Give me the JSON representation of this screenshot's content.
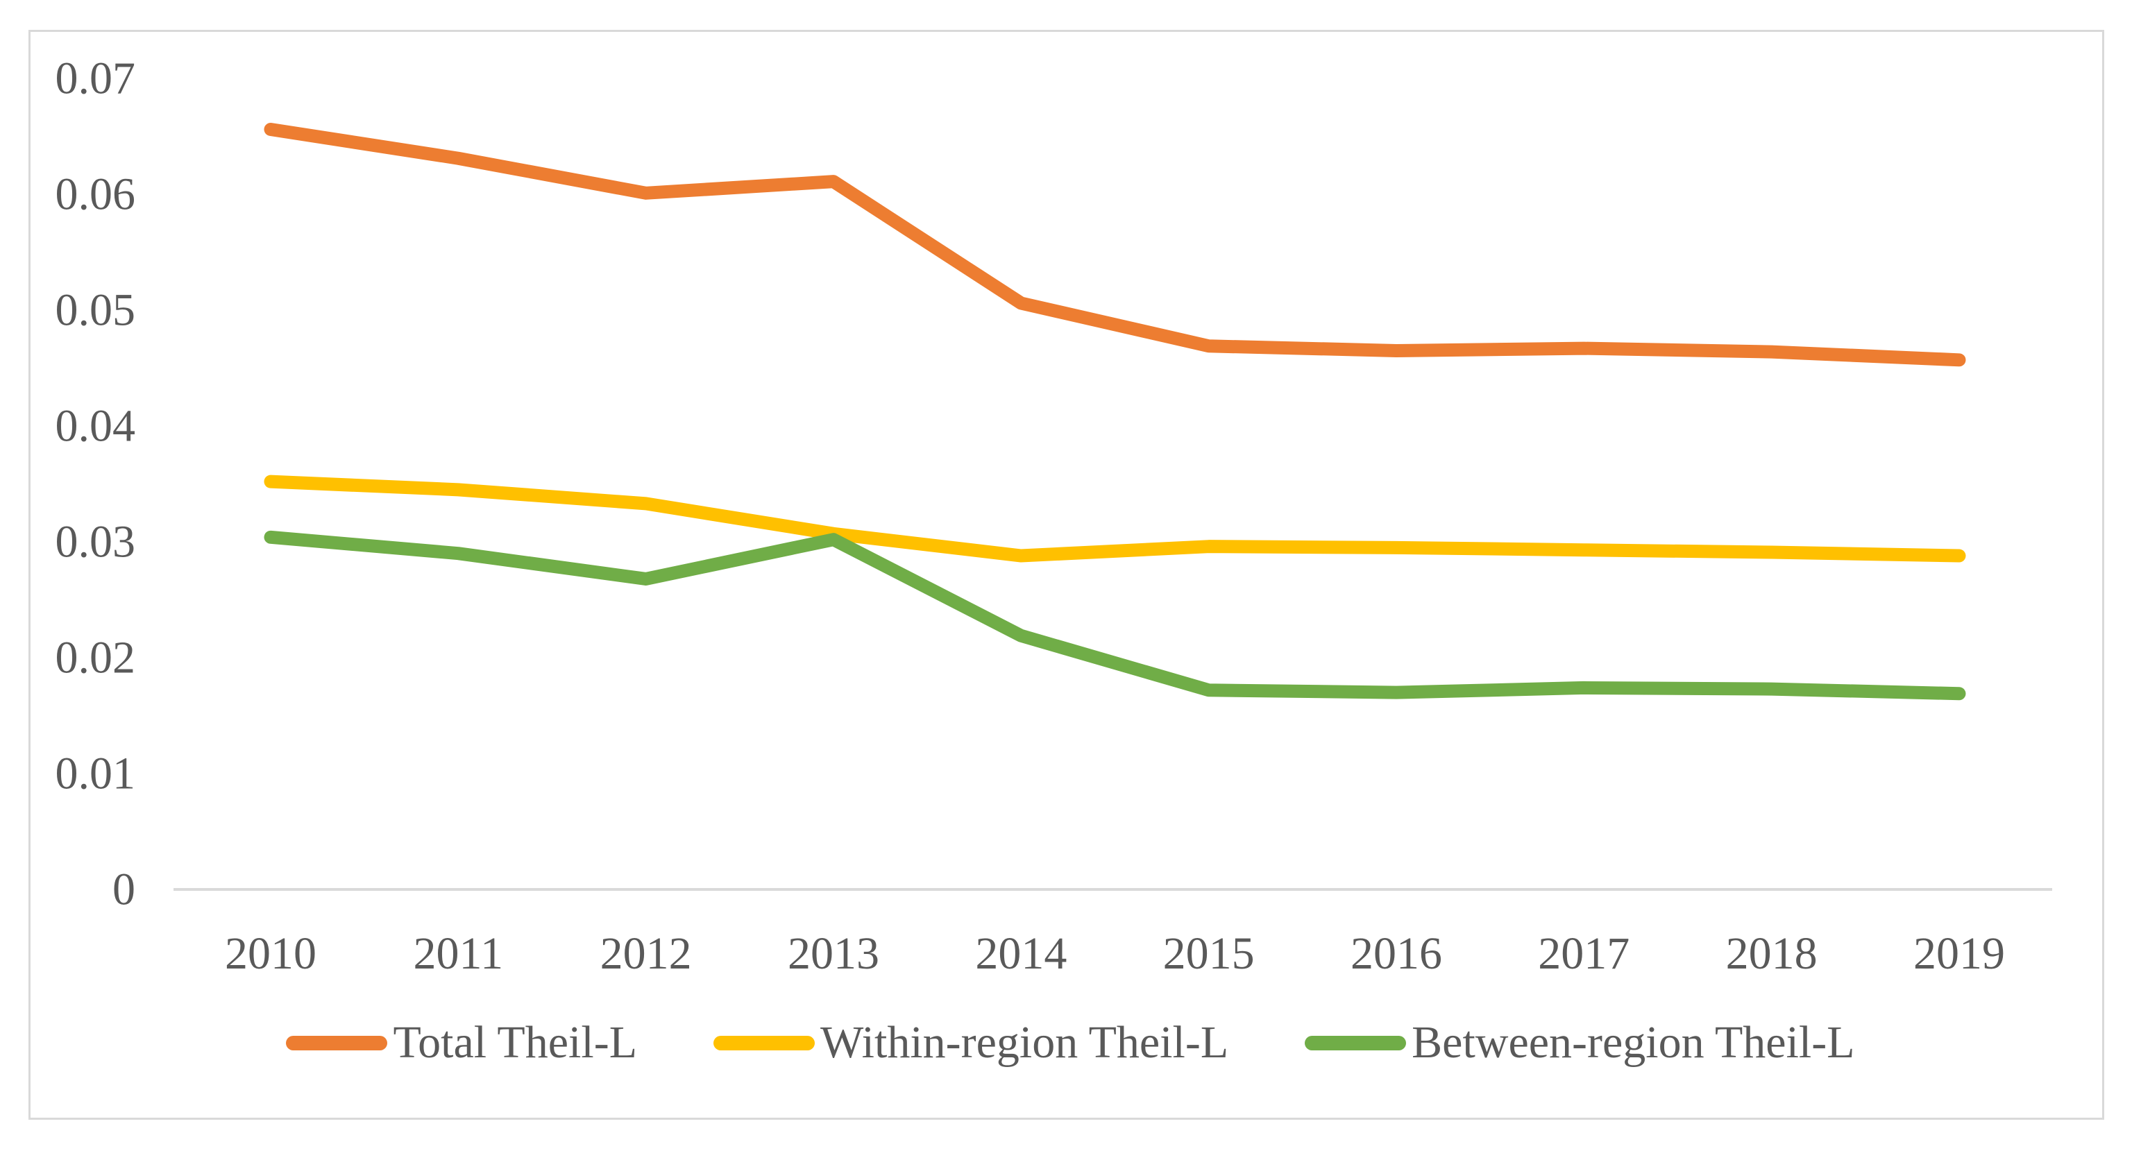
{
  "figure": {
    "description": "Line chart of Theil-L index decomposition, 2010-2019"
  },
  "chart_data": {
    "type": "line",
    "x": [
      "2010",
      "2011",
      "2012",
      "2013",
      "2014",
      "2015",
      "2016",
      "2017",
      "2018",
      "2019"
    ],
    "series": [
      {
        "name": "Total Theil-L",
        "color": "#ED7D31",
        "values": [
          0.0656,
          0.0631,
          0.0601,
          0.0611,
          0.0506,
          0.0469,
          0.0465,
          0.0467,
          0.0464,
          0.0457
        ]
      },
      {
        "name": "Within-region Theil-L",
        "color": "#FFC000",
        "values": [
          0.0352,
          0.0345,
          0.0333,
          0.0307,
          0.0288,
          0.0296,
          0.0295,
          0.0293,
          0.0291,
          0.0288
        ]
      },
      {
        "name": "Between-region Theil-L",
        "color": "#70AD47",
        "values": [
          0.0304,
          0.029,
          0.0268,
          0.0302,
          0.0219,
          0.0172,
          0.017,
          0.0174,
          0.0173,
          0.0169
        ]
      }
    ],
    "y_ticks": [
      "0",
      "0.01",
      "0.02",
      "0.03",
      "0.04",
      "0.05",
      "0.06",
      "0.07"
    ],
    "ylim": [
      0,
      0.07
    ],
    "title": "",
    "xlabel": "",
    "ylabel": "",
    "grid": false,
    "legend_position": "bottom"
  },
  "colors": {
    "text": "#595959",
    "axis": "#D9D9D9",
    "frame": "#D9D9D9",
    "background": "#FFFFFF"
  }
}
